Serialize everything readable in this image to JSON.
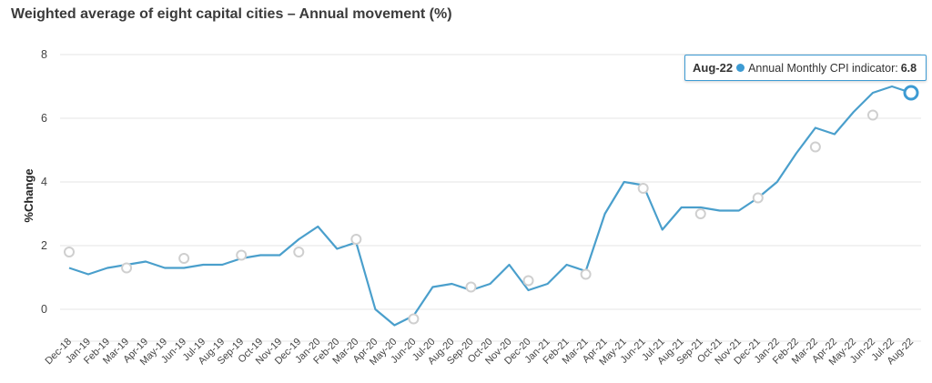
{
  "chart_data": {
    "type": "line",
    "title": "Weighted average of eight capital cities – Annual movement (%)",
    "ylabel": "%Change",
    "xlabel": "",
    "ylim": [
      -1,
      8
    ],
    "yticks": [
      0,
      2,
      4,
      6,
      8
    ],
    "grid": true,
    "colors": {
      "line": "#4a9fcc",
      "quarterly_marker": "#cfcfcf",
      "highlight": "#3d9bd3"
    },
    "categories": [
      "Dec-18",
      "Jan-19",
      "Feb-19",
      "Mar-19",
      "Apr-19",
      "May-19",
      "Jun-19",
      "Jul-19",
      "Aug-19",
      "Sep-19",
      "Oct-19",
      "Nov-19",
      "Dec-19",
      "Jan-20",
      "Feb-20",
      "Mar-20",
      "Apr-20",
      "May-20",
      "Jun-20",
      "Jul-20",
      "Aug-20",
      "Sep-20",
      "Oct-20",
      "Nov-20",
      "Dec-20",
      "Jan-21",
      "Feb-21",
      "Mar-21",
      "Apr-21",
      "May-21",
      "Jun-21",
      "Jul-21",
      "Aug-21",
      "Sep-21",
      "Oct-21",
      "Nov-21",
      "Dec-21",
      "Jan-22",
      "Feb-22",
      "Mar-22",
      "Apr-22",
      "May-22",
      "Jun-22",
      "Jul-22",
      "Aug-22"
    ],
    "series": [
      {
        "name": "Annual Monthly CPI indicator",
        "values": [
          1.3,
          1.1,
          1.3,
          1.4,
          1.5,
          1.3,
          1.3,
          1.4,
          1.4,
          1.6,
          1.7,
          1.7,
          2.2,
          2.6,
          1.9,
          2.1,
          0.0,
          -0.5,
          -0.2,
          0.7,
          0.8,
          0.6,
          0.8,
          1.4,
          0.6,
          0.8,
          1.4,
          1.2,
          3.0,
          4.0,
          3.9,
          2.5,
          3.2,
          3.2,
          3.1,
          3.1,
          3.5,
          4.0,
          4.9,
          5.7,
          5.5,
          6.2,
          6.8,
          7.0,
          6.8
        ]
      },
      {
        "values": [
          1.8,
          null,
          null,
          1.3,
          null,
          null,
          1.6,
          null,
          null,
          1.7,
          null,
          null,
          1.8,
          null,
          null,
          2.2,
          null,
          null,
          -0.3,
          null,
          null,
          0.7,
          null,
          null,
          0.9,
          null,
          null,
          1.1,
          null,
          null,
          3.8,
          null,
          null,
          3.0,
          null,
          null,
          3.5,
          null,
          null,
          5.1,
          null,
          null,
          6.1,
          null,
          null
        ]
      }
    ],
    "highlight": {
      "category": "Aug-22",
      "series_index": 0
    }
  },
  "tooltip": {
    "category": "Aug-22",
    "series_label": "Annual Monthly CPI indicator:",
    "value": "6.8"
  }
}
